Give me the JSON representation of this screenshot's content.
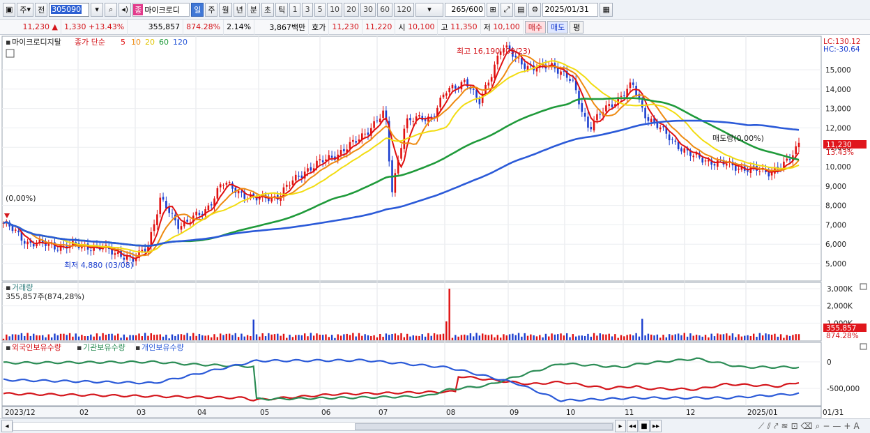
{
  "toolbar": {
    "period_type": "주",
    "view_mode": "전",
    "code": "305090",
    "stock_tag": "종",
    "stock_name": "마이크로디",
    "periods": [
      "일",
      "주",
      "월",
      "년",
      "분",
      "초",
      "틱"
    ],
    "active_period": "일",
    "intervals": [
      "1",
      "3",
      "5",
      "10",
      "20",
      "30",
      "60",
      "120"
    ],
    "count": "265",
    "count_total": "/600",
    "date": "2025/01/31"
  },
  "quote": {
    "price": "11,230",
    "change": "1,330",
    "change_pct": "+13.43%",
    "volume": "355,857",
    "volume_ratio": "874.28%",
    "turnover": "2.14%",
    "amount": "3,867백만",
    "bid_label": "호가",
    "ask": "11,230",
    "bid": "11,220",
    "open_label": "시",
    "open": "10,100",
    "high_label": "고",
    "high": "11,350",
    "low_label": "저",
    "low": "10,100",
    "buy_label": "매수",
    "sell_label": "매도",
    "eval_label": "평"
  },
  "price_panel": {
    "title": "마이크로디지탈",
    "ma_label": "종가 단순",
    "ma_periods": [
      "5",
      "10",
      "20",
      "60",
      "120"
    ],
    "ma_colors": [
      "#e01010",
      "#ee8a10",
      "#f2dc10",
      "#1f9a3a",
      "#2b5ad8"
    ],
    "lc": "LC:130.12",
    "hc": "HC:-30.64",
    "high_annotation": "최고 16,190 (09/23)",
    "low_annotation": "최저 4,880 (03/08)",
    "left_marker": "(0,00%)",
    "right_marker": "매도량(0,00%)",
    "last_price_label": "11,230",
    "last_pct_label": "13.43%",
    "yticks": [
      "15,000",
      "14,000",
      "13,000",
      "12,000",
      "11,000",
      "10,000",
      "9,000",
      "8,000",
      "7,000",
      "6,000",
      "5,000"
    ],
    "ytick_values": [
      15000,
      14000,
      13000,
      12000,
      11000,
      10000,
      9000,
      8000,
      7000,
      6000,
      5000
    ]
  },
  "volume_panel": {
    "title": "거래량",
    "value": "355,857주(874,28%)",
    "yticks": [
      "3,000K",
      "2,000K",
      "1,000K"
    ],
    "ytick_values": [
      3000,
      2000,
      1000
    ],
    "last_label": "355,857",
    "last_pct": "874.28%"
  },
  "holder_panel": {
    "series": [
      "외국인보유수량",
      "기관보유수량",
      "개인보유수량"
    ],
    "colors": [
      "#d4151b",
      "#2b8c55",
      "#2b5ad8"
    ],
    "yticks": [
      "0",
      "-500,000"
    ],
    "ytick_values": [
      0,
      -500000
    ]
  },
  "xaxis": {
    "labels": [
      "2023/12",
      "02",
      "03",
      "04",
      "05",
      "06",
      "07",
      "08",
      "09",
      "10",
      "11",
      "12",
      "2025/01",
      "01/31"
    ]
  }
}
